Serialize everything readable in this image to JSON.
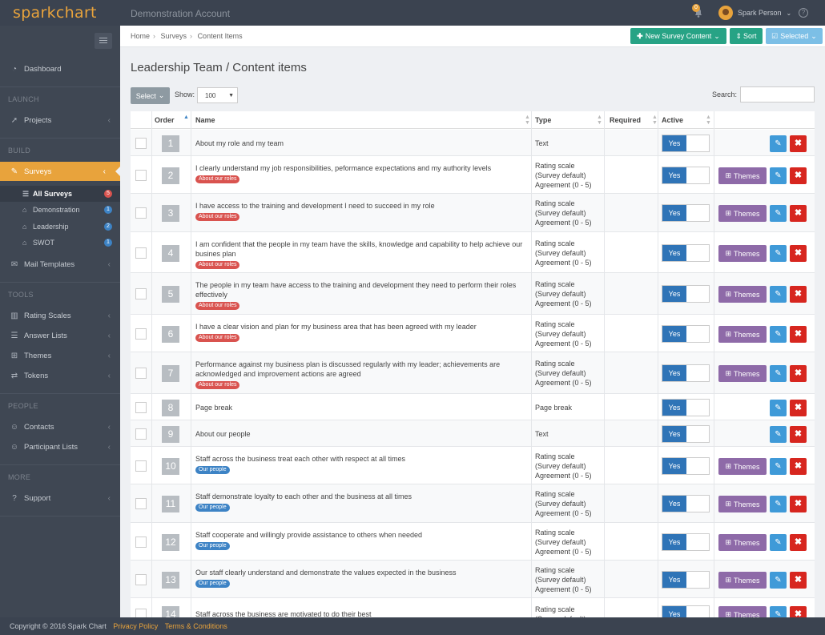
{
  "app": {
    "logo": "sparkchart",
    "account": "Demonstration Account",
    "user": "Spark Person",
    "notifications": "0"
  },
  "sidebar": {
    "dashboard": "Dashboard",
    "launch_heading": "LAUNCH",
    "projects": "Projects",
    "build_heading": "BUILD",
    "surveys": "Surveys",
    "sub": [
      {
        "label": "All Surveys",
        "count": "5"
      },
      {
        "label": "Demonstration",
        "count": "1"
      },
      {
        "label": "Leadership",
        "count": "2"
      },
      {
        "label": "SWOT",
        "count": "1"
      }
    ],
    "mail_templates": "Mail Templates",
    "tools_heading": "TOOLS",
    "rating_scales": "Rating Scales",
    "answer_lists": "Answer Lists",
    "themes": "Themes",
    "tokens": "Tokens",
    "people_heading": "PEOPLE",
    "contacts": "Contacts",
    "participant_lists": "Participant Lists",
    "more_heading": "MORE",
    "support": "Support"
  },
  "breadcrumb": [
    "Home",
    "Surveys",
    "Content Items"
  ],
  "toolbar": {
    "new_content": "New Survey Content",
    "sort": "Sort",
    "selected": "Selected"
  },
  "page": {
    "title": "Leadership Team / Content items"
  },
  "controls": {
    "select": "Select",
    "show_label": "Show:",
    "show_value": "100",
    "search_label": "Search:"
  },
  "table": {
    "headers": {
      "order": "Order",
      "name": "Name",
      "type": "Type",
      "required": "Required",
      "active": "Active"
    },
    "yes": "Yes",
    "themes_label": "Themes",
    "rows": [
      {
        "order": "1",
        "name": "About my role and my team",
        "tag": "",
        "type": [
          "Text"
        ]
      },
      {
        "order": "2",
        "name": "I clearly understand my job responsibilities, peformance expectations and my authority levels",
        "tag": "About our roles",
        "type": [
          "Rating scale",
          "(Survey default)",
          "Agreement (0 - 5)"
        ]
      },
      {
        "order": "3",
        "name": "I have access to the training and development I need to succeed in my role",
        "tag": "About our roles",
        "type": [
          "Rating scale",
          "(Survey default)",
          "Agreement (0 - 5)"
        ]
      },
      {
        "order": "4",
        "name": "I am confident that the people in my team have the skills, knowledge and capability to help achieve our busines plan",
        "tag": "About our roles",
        "type": [
          "Rating scale",
          "(Survey default)",
          "Agreement (0 - 5)"
        ]
      },
      {
        "order": "5",
        "name": "The people in my team have access to the training and development they need to perform their roles effectively",
        "tag": "About our roles",
        "type": [
          "Rating scale",
          "(Survey default)",
          "Agreement (0 - 5)"
        ]
      },
      {
        "order": "6",
        "name": "I have a clear vision and plan for my business area that has been agreed with my leader",
        "tag": "About our roles",
        "type": [
          "Rating scale",
          "(Survey default)",
          "Agreement (0 - 5)"
        ]
      },
      {
        "order": "7",
        "name": "Performance against my business plan is discussed regularly with my leader; achievements are acknowledged and improvement actions are agreed",
        "tag": "About our roles",
        "type": [
          "Rating scale",
          "(Survey default)",
          "Agreement (0 - 5)"
        ]
      },
      {
        "order": "8",
        "name": "Page break",
        "tag": "",
        "type": [
          "Page break"
        ]
      },
      {
        "order": "9",
        "name": "About our people",
        "tag": "",
        "type": [
          "Text"
        ]
      },
      {
        "order": "10",
        "name": "Staff across the business treat each other with respect at all times",
        "tag": "Our people",
        "type": [
          "Rating scale",
          "(Survey default)",
          "Agreement (0 - 5)"
        ]
      },
      {
        "order": "11",
        "name": "Staff demonstrate loyalty to each other and the business at all times",
        "tag": "Our people",
        "type": [
          "Rating scale",
          "(Survey default)",
          "Agreement (0 - 5)"
        ]
      },
      {
        "order": "12",
        "name": "Staff cooperate and willingly provide assistance to others when needed",
        "tag": "Our people",
        "type": [
          "Rating scale",
          "(Survey default)",
          "Agreement (0 - 5)"
        ]
      },
      {
        "order": "13",
        "name": "Our staff clearly understand and demonstrate the values expected in the business",
        "tag": "Our people",
        "type": [
          "Rating scale",
          "(Survey default)",
          "Agreement (0 - 5)"
        ]
      },
      {
        "order": "14",
        "name": "Staff across the business are motivated to do their best",
        "tag": "",
        "type": [
          "Rating scale",
          "(Survey default)"
        ]
      }
    ]
  },
  "footer": {
    "copyright": "Copyright © 2016 Spark Chart",
    "privacy": "Privacy Policy",
    "terms": "Terms & Conditions"
  }
}
